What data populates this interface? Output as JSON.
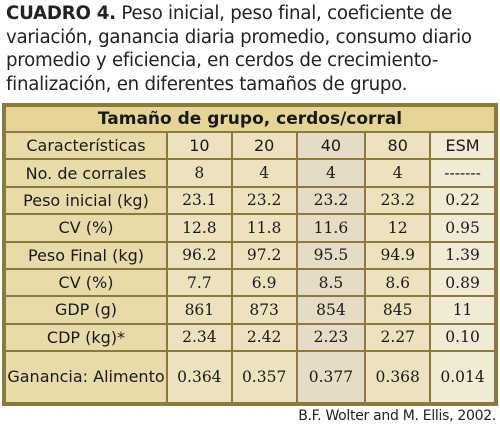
{
  "caption": {
    "label": "CUADRO 4.",
    "text": "Peso inicial, peso final, coeficiente de variación, ganancia diaria promedio, consumo diario promedio y eficiencia, en cerdos de crecimiento-finalización, en diferentes tamaños de grupo."
  },
  "table": {
    "group_header": "Tamaño de grupo, cerdos/corral",
    "columns": [
      "Características",
      "10",
      "20",
      "40",
      "80",
      "ESM"
    ],
    "rows": [
      [
        "No. de corrales",
        "8",
        "4",
        "4",
        "4",
        "-------"
      ],
      [
        "Peso inicial (kg)",
        "23.1",
        "23.2",
        "23.2",
        "23.2",
        "0.22"
      ],
      [
        "CV (%)",
        "12.8",
        "11.8",
        "11.6",
        "12",
        "0.95"
      ],
      [
        "Peso Final (kg)",
        "96.2",
        "97.2",
        "95.5",
        "94.9",
        "1.39"
      ],
      [
        "CV (%)",
        "7.7",
        "6.9",
        "8.5",
        "8.6",
        "0.89"
      ],
      [
        "GDP (g)",
        "861",
        "873",
        "854",
        "845",
        "11"
      ],
      [
        "CDP (kg)*",
        "2.34",
        "2.42",
        "2.23",
        "2.27",
        "0.10"
      ],
      [
        "Ganancia: Alimento",
        "0.364",
        "0.357",
        "0.377",
        "0.368",
        "0.014"
      ]
    ]
  },
  "source": "B.F. Wolter and M. Ellis, 2002."
}
